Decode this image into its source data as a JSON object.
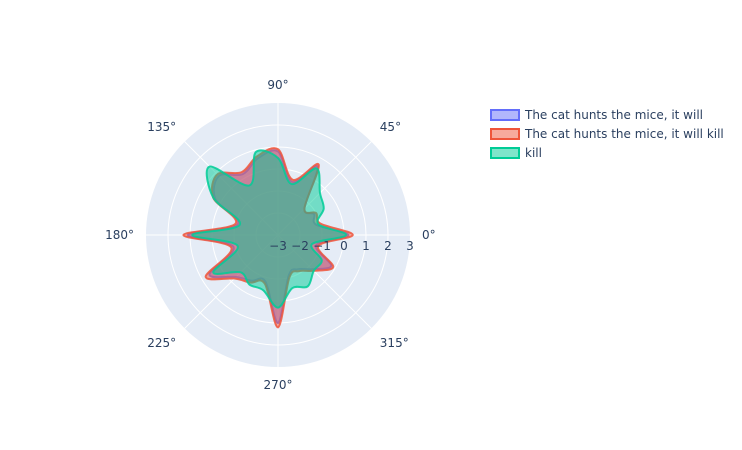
{
  "chart_data": {
    "type": "polar_area",
    "radial_axis": {
      "range": [
        -3,
        3
      ],
      "tickvals": [
        -3,
        -2,
        -1,
        0,
        1,
        2,
        3
      ],
      "ticklabels": [
        "−3",
        "−2",
        "−1",
        "0",
        "1",
        "2",
        "3"
      ],
      "angle_deg": 0
    },
    "angular_axis": {
      "tickvals_deg": [
        0,
        45,
        90,
        135,
        180,
        225,
        270,
        315
      ],
      "ticklabels": [
        "0°",
        "45°",
        "90°",
        "135°",
        "180°",
        "225°",
        "270°",
        "315°"
      ],
      "direction": "counterclockwise"
    },
    "grid": true,
    "legend_position": "top-right",
    "theta": [
      0,
      15,
      30,
      45,
      60,
      75,
      90,
      105,
      120,
      135,
      150,
      165,
      180,
      195,
      210,
      225,
      240,
      255,
      270,
      285,
      300,
      315,
      330,
      345
    ],
    "series": [
      {
        "name": "The cat hunts the mice, it will",
        "color": "#636efa",
        "r": [
          0.2,
          -1.2,
          -1.1,
          -1.3,
          0.6,
          -0.5,
          0.8,
          0.6,
          0.2,
          0.8,
          0.3,
          -1.1,
          1.1,
          -0.9,
          0.6,
          -0.3,
          -0.6,
          -0.8,
          1.0,
          -1.1,
          -1.2,
          -0.8,
          -0.2,
          -1.2
        ]
      },
      {
        "name": "The cat hunts the mice, it will kill",
        "color": "#ef553b",
        "r": [
          0.4,
          -1.0,
          -1.0,
          -1.3,
          0.7,
          -0.4,
          0.9,
          0.7,
          0.3,
          0.9,
          0.4,
          -1.0,
          1.3,
          -0.8,
          0.8,
          -0.2,
          -0.5,
          -0.7,
          1.2,
          -1.0,
          -1.1,
          -0.7,
          -0.1,
          -1.1
        ]
      },
      {
        "name": "kill",
        "color": "#00cc96",
        "r": [
          0.1,
          -1.1,
          -0.6,
          -0.3,
          0.5,
          -0.6,
          0.5,
          0.9,
          -0.4,
          1.4,
          0.4,
          -1.2,
          0.9,
          -1.1,
          0.4,
          -0.6,
          -0.4,
          -0.4,
          0.3,
          -0.5,
          -0.3,
          -0.7,
          -0.7,
          -1.4
        ]
      }
    ]
  }
}
